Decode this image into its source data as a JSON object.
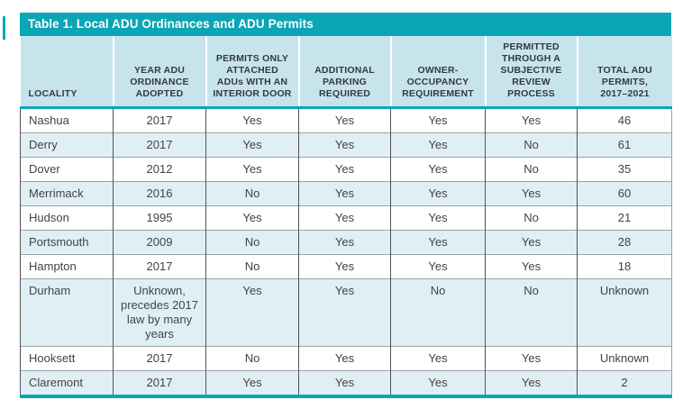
{
  "colors": {
    "teal": "#0aa6b6",
    "header_bg": "#c7e4ec",
    "row_alt": "#e0eff4",
    "body_text": "#3f4447",
    "header_text": "#333a3f"
  },
  "table": {
    "title": "Table 1. Local ADU Ordinances and ADU Permits",
    "columns": [
      {
        "id": "locality",
        "label": "LOCALITY"
      },
      {
        "id": "year-adopted",
        "label": "YEAR ADU\nORDINANCE\nADOPTED"
      },
      {
        "id": "attached-only",
        "label": "PERMITS ONLY\nATTACHED\nADUs WITH AN\nINTERIOR DOOR"
      },
      {
        "id": "additional-parking",
        "label": "ADDITIONAL\nPARKING\nREQUIRED"
      },
      {
        "id": "owner-occupancy",
        "label": "OWNER-\nOCCUPANCY\nREQUIREMENT"
      },
      {
        "id": "subjective-review",
        "label": "PERMITTED\nTHROUGH A\nSUBJECTIVE\nREVIEW\nPROCESS"
      },
      {
        "id": "total-permits",
        "label": "TOTAL ADU\nPERMITS,\n2017–2021"
      }
    ],
    "rows": [
      [
        "Nashua",
        "2017",
        "Yes",
        "Yes",
        "Yes",
        "Yes",
        "46"
      ],
      [
        "Derry",
        "2017",
        "Yes",
        "Yes",
        "Yes",
        "No",
        "61"
      ],
      [
        "Dover",
        "2012",
        "Yes",
        "Yes",
        "Yes",
        "No",
        "35"
      ],
      [
        "Merrimack",
        "2016",
        "No",
        "Yes",
        "Yes",
        "Yes",
        "60"
      ],
      [
        "Hudson",
        "1995",
        "Yes",
        "Yes",
        "Yes",
        "No",
        "21"
      ],
      [
        "Portsmouth",
        "2009",
        "No",
        "Yes",
        "Yes",
        "Yes",
        "28"
      ],
      [
        "Hampton",
        "2017",
        "No",
        "Yes",
        "Yes",
        "Yes",
        "18"
      ],
      [
        "Durham",
        "Unknown,\nprecedes 2017\nlaw by many\nyears",
        "Yes",
        "Yes",
        "No",
        "No",
        "Unknown"
      ],
      [
        "Hooksett",
        "2017",
        "No",
        "Yes",
        "Yes",
        "Yes",
        "Unknown"
      ],
      [
        "Claremont",
        "2017",
        "Yes",
        "Yes",
        "Yes",
        "Yes",
        "2"
      ]
    ]
  }
}
